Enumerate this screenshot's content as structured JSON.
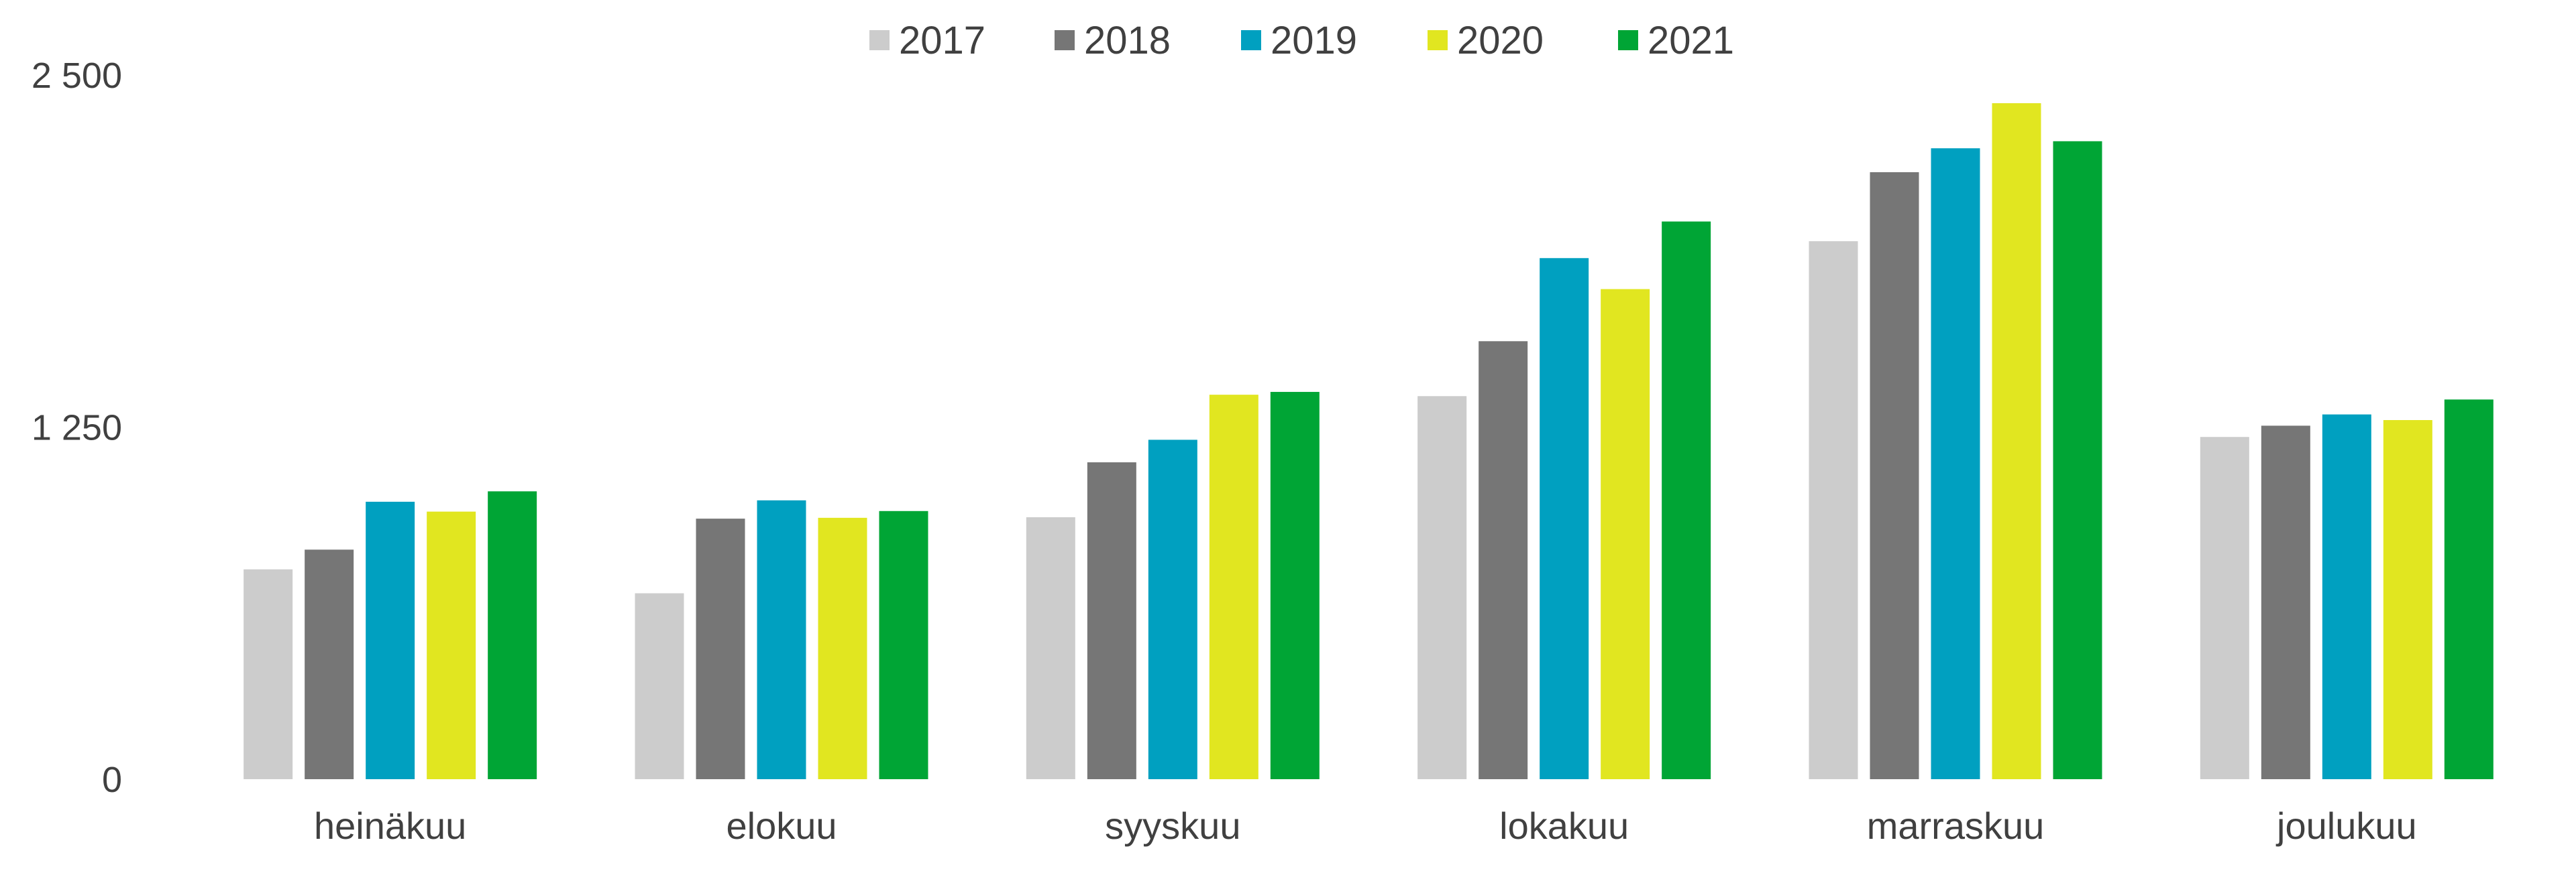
{
  "chart_data": {
    "type": "bar",
    "title": "",
    "xlabel": "",
    "ylabel": "",
    "categories": [
      "heinäkuu",
      "elokuu",
      "syyskuu",
      "lokakuu",
      "marraskuu",
      "joulukuu"
    ],
    "series": [
      {
        "name": "2017",
        "color": "#cccccc",
        "values": [
          745,
          660,
          930,
          1360,
          1910,
          1215
        ]
      },
      {
        "name": "2018",
        "color": "#767676",
        "values": [
          815,
          925,
          1125,
          1555,
          2155,
          1255
        ]
      },
      {
        "name": "2019",
        "color": "#00a0c0",
        "values": [
          985,
          990,
          1205,
          1850,
          2240,
          1295
        ]
      },
      {
        "name": "2020",
        "color": "#e1e620",
        "values": [
          950,
          928,
          1365,
          1740,
          2400,
          1275
        ]
      },
      {
        "name": "2021",
        "color": "#00a535",
        "values": [
          1022,
          952,
          1375,
          1980,
          2265,
          1348
        ]
      }
    ],
    "ylim": [
      0,
      2500
    ],
    "yticks": [
      0,
      1250,
      2500
    ],
    "ytick_labels": [
      "0",
      "1 250",
      "2 500"
    ],
    "grid": false,
    "legend_position": "top-center"
  }
}
